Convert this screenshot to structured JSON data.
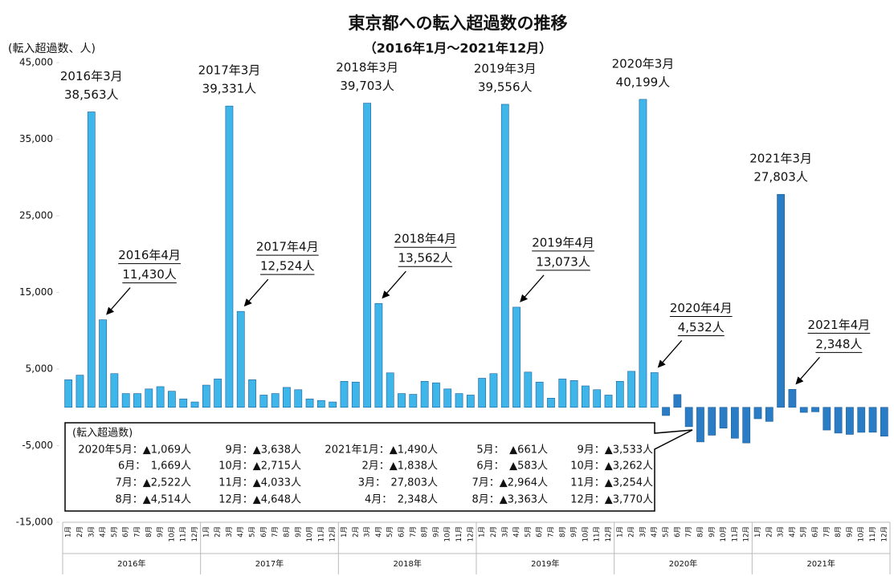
{
  "chart_data": {
    "type": "bar",
    "title": "東京都への転入超過数の推移",
    "subtitle": "（2016年1月～2021年12月）",
    "y_axis_label": "(転入超過数、人)",
    "categories": [
      "1月",
      "2月",
      "3月",
      "4月",
      "5月",
      "6月",
      "7月",
      "8月",
      "9月",
      "10月",
      "11月",
      "12月",
      "1月",
      "2月",
      "3月",
      "4月",
      "5月",
      "6月",
      "7月",
      "8月",
      "9月",
      "10月",
      "11月",
      "12月",
      "1月",
      "2月",
      "3月",
      "4月",
      "5月",
      "6月",
      "7月",
      "8月",
      "9月",
      "10月",
      "11月",
      "12月",
      "1月",
      "2月",
      "3月",
      "4月",
      "5月",
      "6月",
      "7月",
      "8月",
      "9月",
      "10月",
      "11月",
      "12月",
      "1月",
      "2月",
      "3月",
      "4月",
      "5月",
      "6月",
      "7月",
      "8月",
      "9月",
      "10月",
      "11月",
      "12月",
      "1月",
      "2月",
      "3月",
      "4月",
      "5月",
      "6月",
      "7月",
      "8月",
      "9月",
      "10月",
      "11月",
      "12月"
    ],
    "groups": [
      "2016年",
      "2017年",
      "2018年",
      "2019年",
      "2020年",
      "2021年"
    ],
    "values": [
      3600,
      4200,
      38563,
      11430,
      4400,
      1800,
      1800,
      2400,
      2700,
      2100,
      1100,
      700,
      2900,
      3700,
      39331,
      12524,
      3600,
      1600,
      1800,
      2600,
      2300,
      1100,
      900,
      700,
      3400,
      3300,
      39703,
      13562,
      4500,
      1800,
      1700,
      3400,
      3200,
      2400,
      1800,
      1600,
      3800,
      4400,
      39556,
      13073,
      4600,
      3300,
      1200,
      3700,
      3500,
      2800,
      2300,
      1600,
      3400,
      4700,
      40199,
      4532,
      -1069,
      1669,
      -2522,
      -4514,
      -3638,
      -2715,
      -4033,
      -4648,
      -1490,
      -1838,
      27803,
      2348,
      -661,
      -583,
      -2964,
      -3363,
      -3533,
      -3262,
      -3254,
      -3770
    ],
    "label_titles": [
      null,
      null,
      "2016年3月",
      "2016年4月",
      null,
      null,
      null,
      null,
      null,
      null,
      null,
      null,
      null,
      null,
      "2017年3月",
      "2017年4月",
      null,
      null,
      null,
      null,
      null,
      null,
      null,
      null,
      null,
      null,
      "2018年3月",
      "2018年4月",
      null,
      null,
      null,
      null,
      null,
      null,
      null,
      null,
      null,
      null,
      "2019年3月",
      "2019年4月",
      null,
      null,
      null,
      null,
      null,
      null,
      null,
      null,
      null,
      null,
      "2020年3月",
      "2020年4月",
      null,
      null,
      null,
      null,
      null,
      null,
      null,
      null,
      null,
      null,
      "2021年3月",
      "2021年4月",
      null,
      null,
      null,
      null,
      null,
      null,
      null,
      null
    ],
    "value_labels": [
      null,
      null,
      "38,563人",
      "11,430人",
      null,
      null,
      null,
      null,
      null,
      null,
      null,
      null,
      null,
      null,
      "39,331人",
      "12,524人",
      null,
      null,
      null,
      null,
      null,
      null,
      null,
      null,
      null,
      null,
      "39,703人",
      "13,562人",
      null,
      null,
      null,
      null,
      null,
      null,
      null,
      null,
      null,
      null,
      "39,556人",
      "13,073人",
      null,
      null,
      null,
      null,
      null,
      null,
      null,
      null,
      null,
      null,
      "40,199人",
      "4,532人",
      null,
      null,
      null,
      null,
      null,
      null,
      null,
      null,
      null,
      null,
      "27,803人",
      "2,348人",
      null,
      null,
      null,
      null,
      null,
      null,
      null,
      null
    ],
    "colors": [
      "#3fb6ea",
      "#3fb6ea",
      "#3fb6ea",
      "#3fb6ea",
      "#3fb6ea",
      "#3fb6ea",
      "#3fb6ea",
      "#3fb6ea",
      "#3fb6ea",
      "#3fb6ea",
      "#3fb6ea",
      "#3fb6ea",
      "#3fb6ea",
      "#3fb6ea",
      "#3fb6ea",
      "#3fb6ea",
      "#3fb6ea",
      "#3fb6ea",
      "#3fb6ea",
      "#3fb6ea",
      "#3fb6ea",
      "#3fb6ea",
      "#3fb6ea",
      "#3fb6ea",
      "#3fb6ea",
      "#3fb6ea",
      "#3fb6ea",
      "#3fb6ea",
      "#3fb6ea",
      "#3fb6ea",
      "#3fb6ea",
      "#3fb6ea",
      "#3fb6ea",
      "#3fb6ea",
      "#3fb6ea",
      "#3fb6ea",
      "#3fb6ea",
      "#3fb6ea",
      "#3fb6ea",
      "#3fb6ea",
      "#3fb6ea",
      "#3fb6ea",
      "#3fb6ea",
      "#3fb6ea",
      "#3fb6ea",
      "#3fb6ea",
      "#3fb6ea",
      "#3fb6ea",
      "#3fb6ea",
      "#3fb6ea",
      "#3fb6ea",
      "#3fb6ea",
      "#2a7cc4",
      "#2a7cc4",
      "#2a7cc4",
      "#2a7cc4",
      "#2a7cc4",
      "#2a7cc4",
      "#2a7cc4",
      "#2a7cc4",
      "#2a7cc4",
      "#2a7cc4",
      "#2a7cc4",
      "#2a7cc4",
      "#2a7cc4",
      "#2a7cc4",
      "#2a7cc4",
      "#2a7cc4",
      "#2a7cc4",
      "#2a7cc4",
      "#2a7cc4",
      "#2a7cc4"
    ],
    "ylim": [
      -15000,
      45000
    ],
    "yticks": [
      {
        "value": -15000,
        "label": "-15,000"
      },
      {
        "value": -5000,
        "label": "-5,000"
      },
      {
        "value": 5000,
        "label": "5,000"
      },
      {
        "value": 15000,
        "label": "15,000"
      },
      {
        "value": 25000,
        "label": "25,000"
      },
      {
        "value": 35000,
        "label": "35,000"
      },
      {
        "value": 45000,
        "label": "45,000"
      }
    ]
  },
  "callout": {
    "title": "(転入超過数)",
    "rows": [
      [
        "2020年5月：▲1,069人",
        "9月：▲3,638人",
        "2021年1月：▲1,490人",
        "5月：　▲661人",
        "9月：▲3,533人"
      ],
      [
        "6月：　1,669人",
        "10月：▲2,715人",
        "2月：▲1,838人",
        "6月：　▲583人",
        "10月：▲3,262人"
      ],
      [
        "7月：▲2,522人",
        "11月：▲4,033人",
        "3月：　27,803人",
        "7月：▲2,964人",
        "11月：▲3,254人"
      ],
      [
        "8月：▲4,514人",
        "12月：▲4,648人",
        "4月：　2,348人",
        "8月：▲3,363人",
        "12月：▲3,770人"
      ]
    ]
  }
}
